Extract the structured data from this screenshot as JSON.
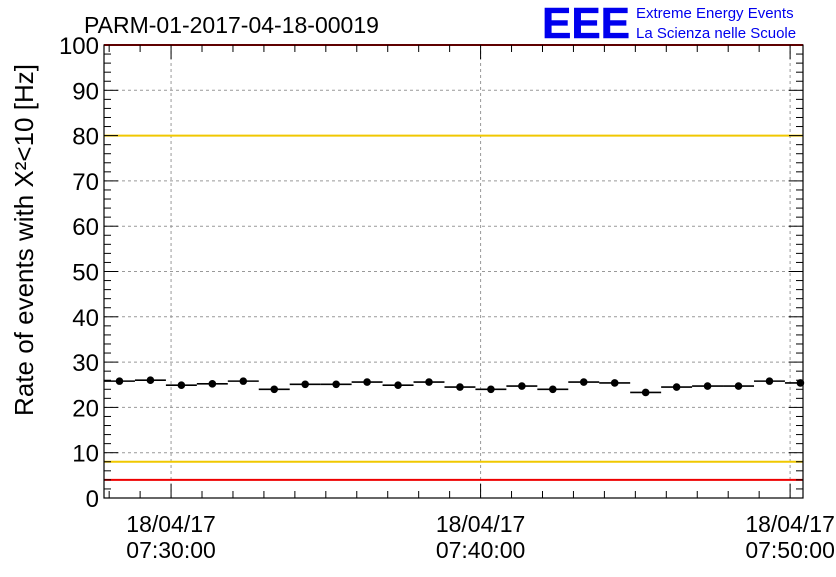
{
  "title": "PARM-01-2017-04-18-00019",
  "logo": {
    "mark": "EEE",
    "line1": "Extreme Energy Events",
    "line2": "La Scienza nelle Scuole",
    "color": "#0000ee"
  },
  "colors": {
    "red_line": "#ee0000",
    "yellow_line": "#f0c800",
    "grid": "#999999",
    "points": "#000000"
  },
  "chart_data": {
    "type": "scatter",
    "ylabel": "Rate of events with X²<10 [Hz]",
    "ylim": [
      0,
      100
    ],
    "yticks": [
      0,
      10,
      20,
      30,
      40,
      50,
      60,
      70,
      80,
      90,
      100
    ],
    "xlim": [
      "2017-04-18T07:27:50",
      "2017-04-18T07:50:25"
    ],
    "xticks": [
      {
        "t": "2017-04-18T07:30:00",
        "date": "18/04/17",
        "time": "07:30:00"
      },
      {
        "t": "2017-04-18T07:40:00",
        "date": "18/04/17",
        "time": "07:40:00"
      },
      {
        "t": "2017-04-18T07:50:00",
        "date": "18/04/17",
        "time": "07:50:00"
      }
    ],
    "grid": true,
    "reference_lines": [
      {
        "y": 100,
        "color": "red"
      },
      {
        "y": 80,
        "color": "yellow"
      },
      {
        "y": 8,
        "color": "yellow"
      },
      {
        "y": 4,
        "color": "red"
      }
    ],
    "series": [
      {
        "x": [
          "2017-04-18T07:28:20",
          "2017-04-18T07:29:20",
          "2017-04-18T07:30:20",
          "2017-04-18T07:31:20",
          "2017-04-18T07:32:20",
          "2017-04-18T07:33:20",
          "2017-04-18T07:34:20",
          "2017-04-18T07:35:20",
          "2017-04-18T07:36:20",
          "2017-04-18T07:37:20",
          "2017-04-18T07:38:20",
          "2017-04-18T07:39:20",
          "2017-04-18T07:40:20",
          "2017-04-18T07:41:20",
          "2017-04-18T07:42:20",
          "2017-04-18T07:43:20",
          "2017-04-18T07:44:20",
          "2017-04-18T07:45:20",
          "2017-04-18T07:46:20",
          "2017-04-18T07:47:20",
          "2017-04-18T07:48:20",
          "2017-04-18T07:49:20",
          "2017-04-18T07:50:20"
        ],
        "y": [
          25.8,
          26.0,
          24.9,
          25.2,
          25.8,
          24.0,
          25.1,
          25.1,
          25.6,
          24.9,
          25.6,
          24.5,
          24.0,
          24.7,
          24.0,
          25.6,
          25.4,
          23.3,
          24.5,
          24.7,
          24.7,
          25.8,
          25.4
        ],
        "x_half_width_seconds": 30
      }
    ]
  }
}
